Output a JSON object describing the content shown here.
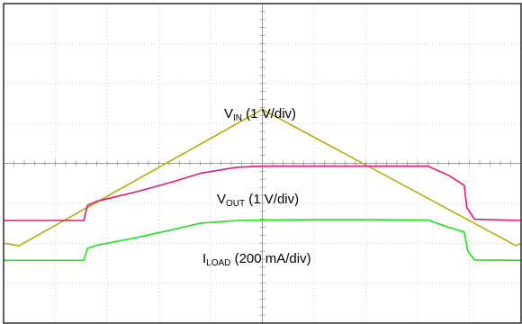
{
  "chart_data": {
    "type": "line",
    "grid": true,
    "x_divisions": 10,
    "y_divisions": 8,
    "background": "#ffffff",
    "grid_color": "#c8c8c8",
    "frame_color": "#2b2b2b",
    "series": [
      {
        "id": "vin",
        "color": "#b8ac12",
        "label": {
          "main": "V",
          "sub": "IN",
          "scale": " (1 V/div)"
        },
        "points": [
          [
            0.0,
            6.0
          ],
          [
            0.3,
            6.06
          ],
          [
            5.0,
            2.65
          ],
          [
            9.9,
            6.06
          ],
          [
            10.0,
            6.0
          ]
        ]
      },
      {
        "id": "vout",
        "color": "#e01a76",
        "label": {
          "main": "V",
          "sub": "OUT",
          "scale": " (1 V/div)"
        },
        "points": [
          [
            0.0,
            5.43
          ],
          [
            1.55,
            5.43
          ],
          [
            1.62,
            5.05
          ],
          [
            1.8,
            4.95
          ],
          [
            2.6,
            4.7
          ],
          [
            3.3,
            4.45
          ],
          [
            3.8,
            4.25
          ],
          [
            4.5,
            4.1
          ],
          [
            5.0,
            4.07
          ],
          [
            6.0,
            4.07
          ],
          [
            7.0,
            4.07
          ],
          [
            8.2,
            4.07
          ],
          [
            8.6,
            4.3
          ],
          [
            8.9,
            4.55
          ],
          [
            8.95,
            5.1
          ],
          [
            9.1,
            5.4
          ],
          [
            10.0,
            5.43
          ]
        ]
      },
      {
        "id": "iload",
        "color": "#1ee01e",
        "label": {
          "main": "I",
          "sub": "LOAD",
          "scale": " (200 mA/div)"
        },
        "points": [
          [
            0.0,
            6.43
          ],
          [
            1.55,
            6.43
          ],
          [
            1.62,
            6.13
          ],
          [
            1.8,
            6.05
          ],
          [
            2.6,
            5.85
          ],
          [
            3.3,
            5.65
          ],
          [
            3.8,
            5.5
          ],
          [
            4.5,
            5.43
          ],
          [
            5.0,
            5.42
          ],
          [
            6.0,
            5.41
          ],
          [
            7.0,
            5.41
          ],
          [
            8.2,
            5.42
          ],
          [
            8.6,
            5.6
          ],
          [
            8.9,
            5.72
          ],
          [
            8.97,
            6.2
          ],
          [
            9.1,
            6.42
          ],
          [
            10.0,
            6.43
          ]
        ]
      }
    ]
  }
}
